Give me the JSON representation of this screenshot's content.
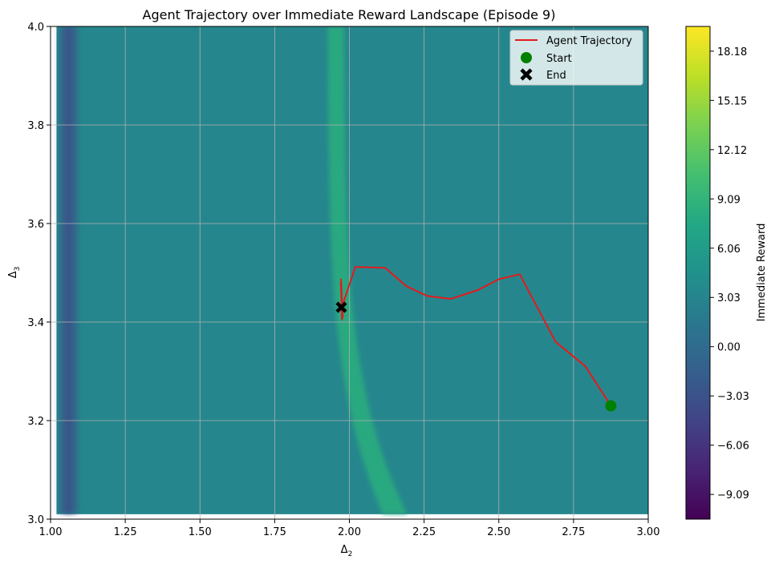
{
  "chart_data": {
    "type": "heatmap",
    "title": "Agent Trajectory over Immediate Reward Landscape (Episode 9)",
    "xlabel": "Δ",
    "xlabel_sub": "2",
    "ylabel": "Δ",
    "ylabel_sub": "3",
    "xlim": [
      1.0,
      3.0
    ],
    "ylim": [
      3.0,
      4.0
    ],
    "x_ticks": [
      "1.00",
      "1.25",
      "1.50",
      "1.75",
      "2.00",
      "2.25",
      "2.50",
      "2.75",
      "3.00"
    ],
    "y_ticks": [
      "3.0",
      "3.2",
      "3.4",
      "3.6",
      "3.8",
      "4.0"
    ],
    "grid": true,
    "legend_position": "top-right",
    "colorbar": {
      "label": "Immediate Reward",
      "colormap": "viridis",
      "range": [
        -10.61,
        19.7
      ],
      "ticks": [
        "−9.09",
        "−6.06",
        "−3.03",
        "0.00",
        "3.03",
        "6.06",
        "9.09",
        "12.12",
        "15.15",
        "18.18"
      ]
    },
    "background_level": 3.3,
    "features": [
      {
        "kind": "low_stripe",
        "x": 1.06,
        "value": -3.5
      },
      {
        "kind": "high_ridge",
        "x_top": 1.96,
        "x_bottom": 2.15,
        "value": 8.5
      }
    ],
    "trajectory": {
      "name": "Agent Trajectory",
      "color": "#e41a1c",
      "x": [
        2.875,
        2.79,
        2.69,
        2.57,
        2.5,
        2.43,
        2.34,
        2.26,
        2.19,
        2.12,
        2.02,
        1.98,
        1.975,
        1.972,
        1.978,
        1.971,
        1.976,
        1.972,
        1.977,
        1.973
      ],
      "y": [
        3.23,
        3.31,
        3.36,
        3.497,
        3.487,
        3.465,
        3.447,
        3.453,
        3.473,
        3.51,
        3.512,
        3.44,
        3.405,
        3.487,
        3.41,
        3.48,
        3.415,
        3.475,
        3.42,
        3.43
      ]
    },
    "start": {
      "name": "Start",
      "x": 2.875,
      "y": 3.23,
      "color": "#008000"
    },
    "end": {
      "name": "End",
      "x": 1.973,
      "y": 3.43,
      "color": "#000000"
    },
    "legend": [
      "Agent Trajectory",
      "Start",
      "End"
    ]
  }
}
